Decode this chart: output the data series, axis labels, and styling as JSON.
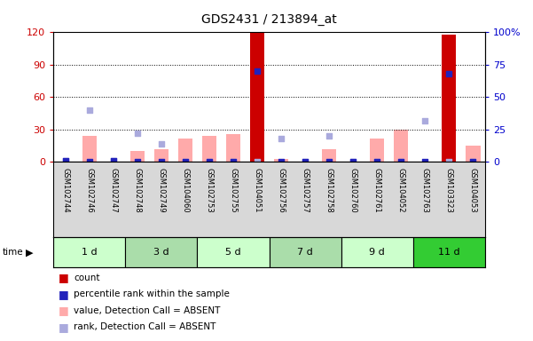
{
  "title": "GDS2431 / 213894_at",
  "samples": [
    "GSM102744",
    "GSM102746",
    "GSM102747",
    "GSM102748",
    "GSM102749",
    "GSM104060",
    "GSM102753",
    "GSM102755",
    "GSM104051",
    "GSM102756",
    "GSM102757",
    "GSM102758",
    "GSM102760",
    "GSM102761",
    "GSM104052",
    "GSM102763",
    "GSM103323",
    "GSM104053"
  ],
  "time_groups": [
    {
      "label": "1 d",
      "start": 0,
      "end": 3,
      "color": "#ccffcc"
    },
    {
      "label": "3 d",
      "start": 3,
      "end": 6,
      "color": "#aaddaa"
    },
    {
      "label": "5 d",
      "start": 6,
      "end": 9,
      "color": "#ccffcc"
    },
    {
      "label": "7 d",
      "start": 9,
      "end": 12,
      "color": "#aaddaa"
    },
    {
      "label": "9 d",
      "start": 12,
      "end": 15,
      "color": "#ccffcc"
    },
    {
      "label": "11 d",
      "start": 15,
      "end": 18,
      "color": "#33cc33"
    }
  ],
  "count_values": [
    0,
    0,
    0,
    0,
    0,
    0,
    0,
    0,
    120,
    0,
    0,
    0,
    0,
    0,
    0,
    0,
    118,
    0
  ],
  "percentile_rank": [
    1,
    0,
    1,
    0,
    0,
    0,
    0,
    0,
    70,
    0,
    0,
    0,
    0,
    0,
    0,
    0,
    68,
    0
  ],
  "value_absent": [
    0,
    24,
    0,
    10,
    12,
    22,
    24,
    26,
    0,
    3,
    0,
    12,
    0,
    22,
    30,
    0,
    0,
    15
  ],
  "rank_absent": [
    1,
    40,
    1,
    22,
    14,
    0,
    0,
    0,
    0,
    18,
    0,
    20,
    0,
    0,
    0,
    32,
    0,
    0
  ],
  "left_yticks": [
    0,
    30,
    60,
    90,
    120
  ],
  "right_yticks": [
    0,
    25,
    50,
    75,
    100
  ],
  "right_yticklabels": [
    "0",
    "25",
    "50",
    "75",
    "100%"
  ],
  "color_count": "#cc0000",
  "color_percentile": "#2222bb",
  "color_value_absent": "#ffaaaa",
  "color_rank_absent": "#aaaadd",
  "legend_items": [
    {
      "label": "count",
      "color": "#cc0000"
    },
    {
      "label": "percentile rank within the sample",
      "color": "#2222bb"
    },
    {
      "label": "value, Detection Call = ABSENT",
      "color": "#ffaaaa"
    },
    {
      "label": "rank, Detection Call = ABSENT",
      "color": "#aaaadd"
    }
  ]
}
